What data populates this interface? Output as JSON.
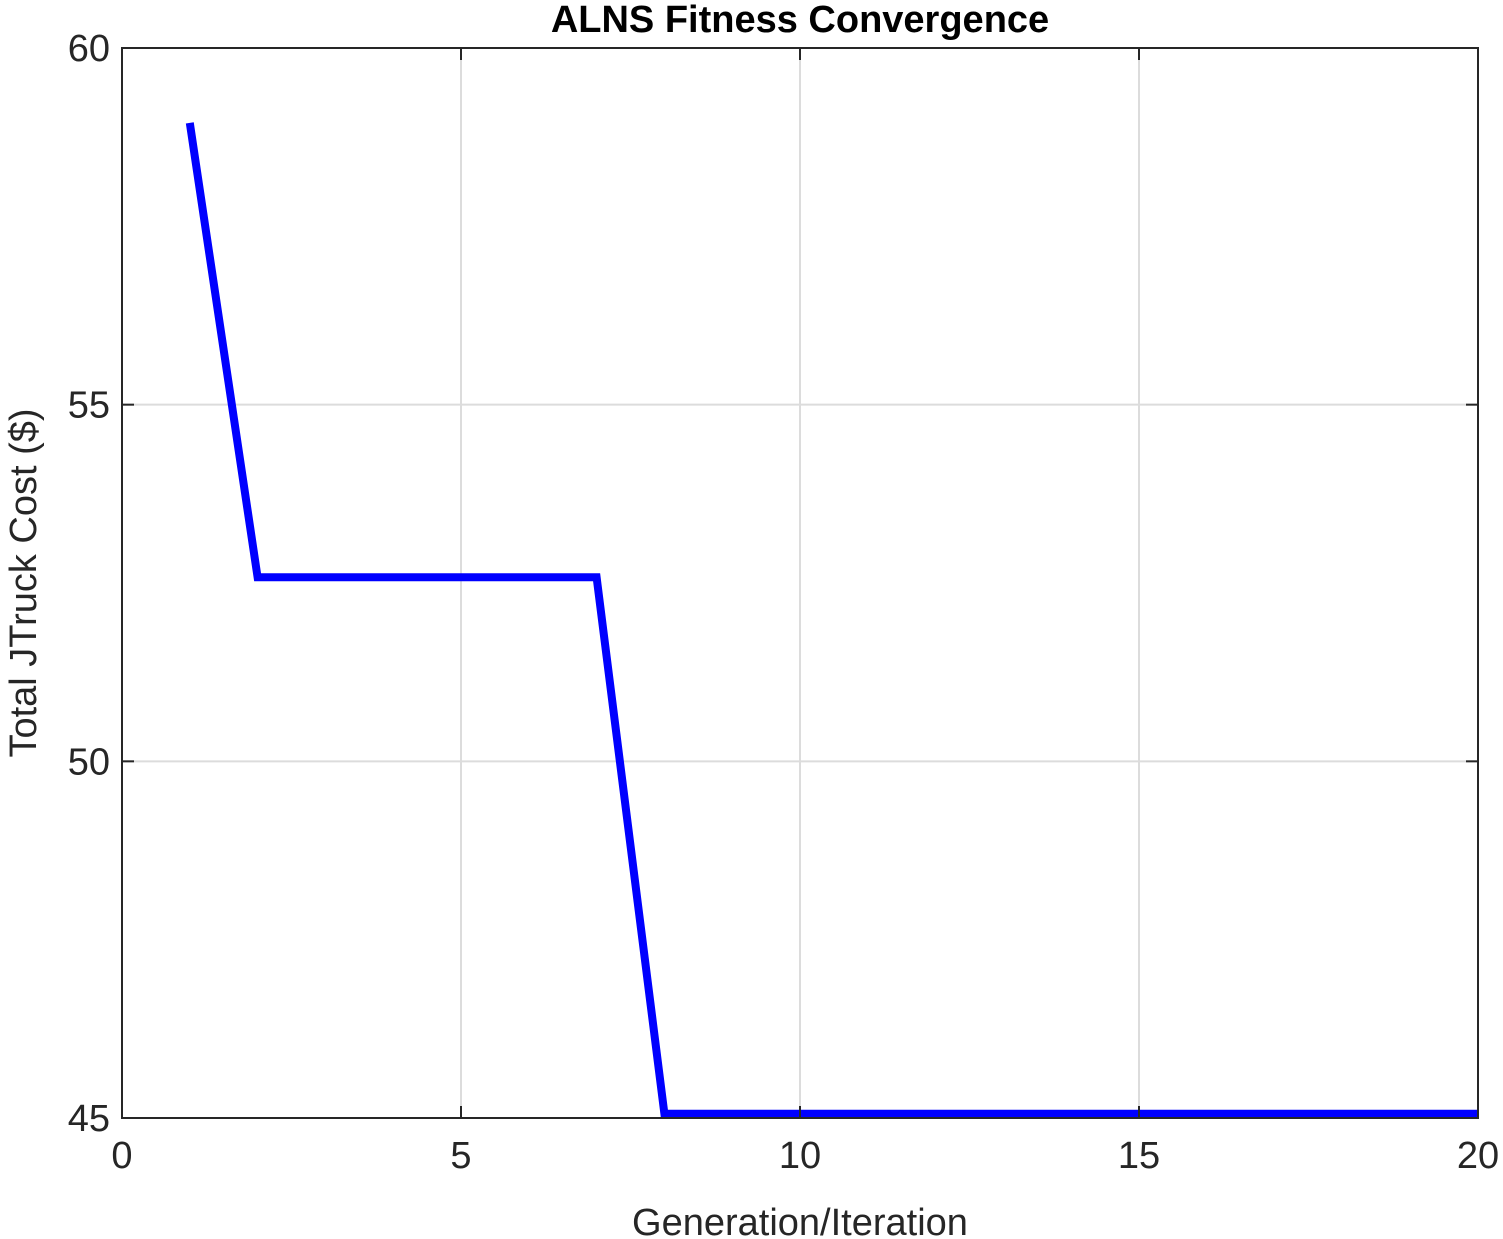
{
  "chart_data": {
    "type": "line",
    "title": "ALNS Fitness Convergence",
    "xlabel": "Generation/Iteration",
    "ylabel": "Total JTruck Cost ($)",
    "xlim": [
      0,
      20
    ],
    "ylim": [
      45,
      60
    ],
    "xticks": [
      "0",
      "5",
      "10",
      "15",
      "20"
    ],
    "yticks": [
      "45",
      "50",
      "55",
      "60"
    ],
    "grid": true,
    "series": [
      {
        "color": "#0000ff",
        "x": [
          1,
          2,
          3,
          4,
          5,
          6,
          7,
          8,
          9,
          10,
          11,
          12,
          13,
          14,
          15,
          16,
          17,
          18,
          19,
          20
        ],
        "y": [
          58.95,
          52.58,
          52.58,
          52.58,
          52.58,
          52.58,
          52.58,
          45.06,
          45.06,
          45.06,
          45.06,
          45.06,
          45.06,
          45.06,
          45.06,
          45.06,
          45.06,
          45.06,
          45.06,
          45.06
        ]
      }
    ]
  }
}
